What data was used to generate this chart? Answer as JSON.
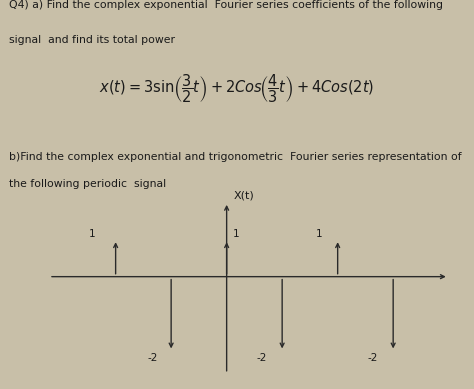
{
  "bg_color": "#c8bfa8",
  "plot_bg": "#e8e4da",
  "text_color": "#1a1a1a",
  "title_line1": "Q4) a) Find the complex exponential  Fourier series coefficients of the following",
  "title_line2": "signal  and find its total power",
  "subtitle_line1": "b)Find the complex exponential and trigonometric  Fourier series representation of",
  "subtitle_line2": "the following periodic  signal",
  "ylabel": "X(t)",
  "stem_x": [
    -1.0,
    -0.5,
    0.0,
    0.5,
    1.0,
    1.5
  ],
  "stem_y": [
    1.0,
    -2.0,
    1.0,
    -2.0,
    1.0,
    -2.0
  ],
  "xlim": [
    -1.7,
    2.1
  ],
  "ylim": [
    -2.8,
    2.2
  ],
  "figsize": [
    4.74,
    3.89
  ],
  "dpi": 100
}
